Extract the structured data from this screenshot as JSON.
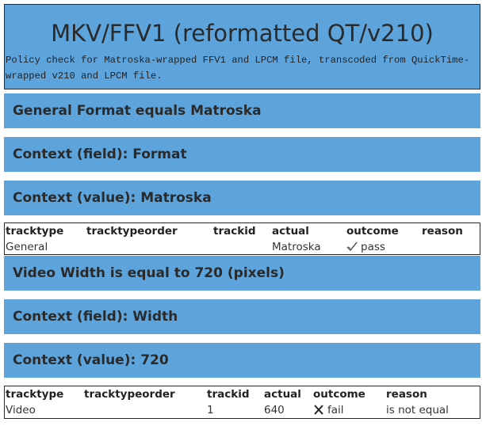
{
  "header": {
    "title": "MKV/FFV1 (reformatted QT/v210)",
    "description": "Policy check for Matroska-wrapped FFV1 and LPCM file, transcoded from QuickTime-wrapped v210 and LPCM file."
  },
  "policies": [
    {
      "heading": "General Format equals Matroska",
      "field": "Context (field): Format",
      "value": "Context (value): Matroska",
      "columns": [
        "tracktype",
        "tracktypeorder",
        "trackid",
        "actual",
        "outcome",
        "reason"
      ],
      "row": {
        "tracktype": "General",
        "tracktypeorder": "",
        "trackid": "",
        "actual": "Matroska",
        "outcome": "pass",
        "outcome_icon": "checkmark-icon",
        "reason": ""
      }
    },
    {
      "heading": "Video Width is equal to 720 (pixels)",
      "field": "Context (field): Width",
      "value": "Context (value): 720",
      "columns": [
        "tracktype",
        "tracktypeorder",
        "trackid",
        "actual",
        "outcome",
        "reason"
      ],
      "row": {
        "tracktype": "Video",
        "tracktypeorder": "",
        "trackid": "1",
        "actual": "640",
        "outcome": "fail",
        "outcome_icon": "cross-icon",
        "reason": "is not equal"
      }
    }
  ],
  "colors": {
    "bar": "#5ea4dc",
    "border": "#2b2b2b"
  }
}
